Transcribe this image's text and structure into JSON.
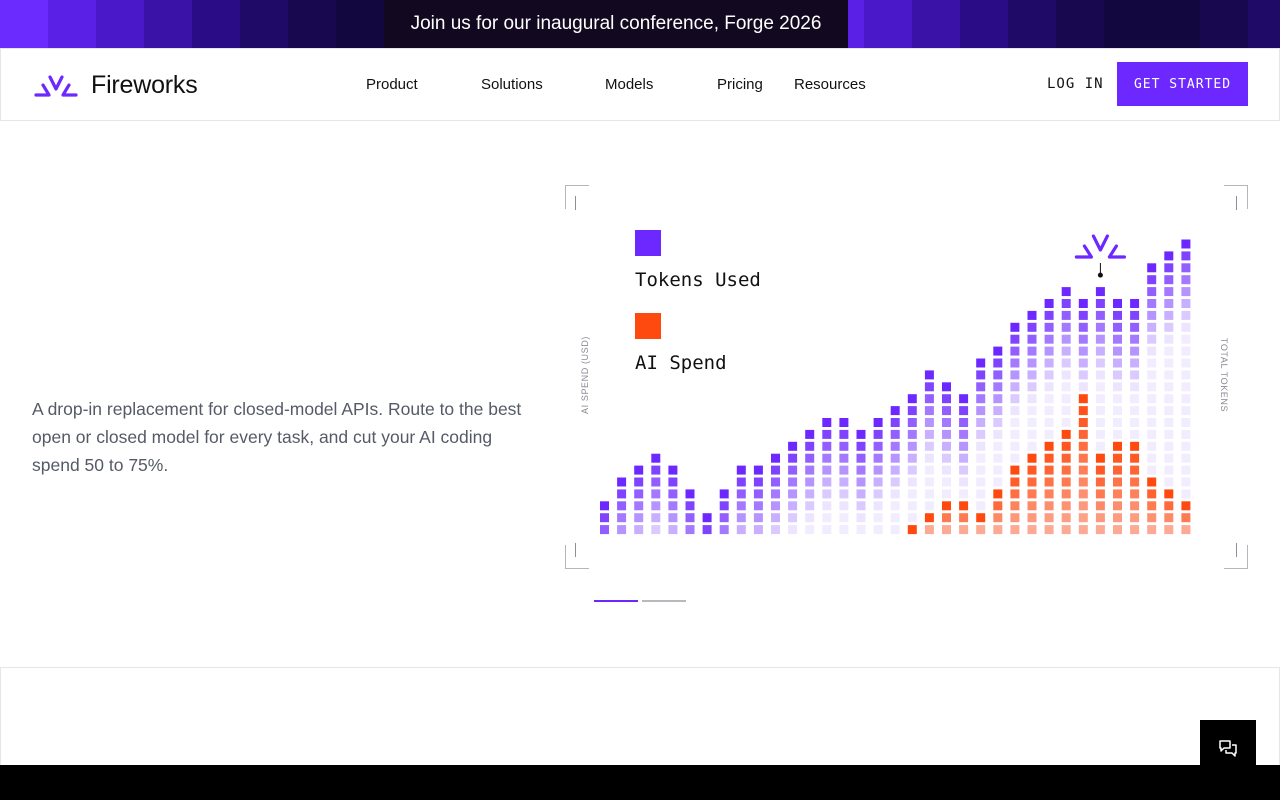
{
  "banner": {
    "text": "Join us for our inaugural conference, Forge 2026",
    "tile_colors": [
      "#6b2bff",
      "#5a20e6",
      "#4a18c9",
      "#3a12a8",
      "#2a0d86",
      "#1f0a68",
      "#170850",
      "#12073e"
    ]
  },
  "header": {
    "logo_text": "Fireworks",
    "nav": [
      "Product",
      "Solutions",
      "Models",
      "Pricing",
      "Resources"
    ],
    "login": "LOG IN",
    "cta": "GET STARTED"
  },
  "hero": {
    "description": "A drop-in replacement for closed-model APIs. Route to the best open or closed model for every task, and cut your AI coding spend 50 to 75%."
  },
  "colors": {
    "accent": "#6d28ff",
    "spend": "#ff4a0f"
  },
  "chart_data": {
    "type": "bar",
    "ylabel": "AI SPEND (USD)",
    "y2label": "TOTAL TOKENS",
    "legend_placement": "top-left",
    "series": [
      {
        "name": "Tokens Used",
        "color": "#6d28ff",
        "values": [
          3,
          5,
          6,
          7,
          6,
          4,
          2,
          4,
          6,
          6,
          7,
          8,
          9,
          10,
          10,
          9,
          10,
          11,
          12,
          14,
          13,
          12,
          15,
          16,
          18,
          19,
          20,
          21,
          20,
          21,
          20,
          20,
          23,
          24,
          25
        ]
      },
      {
        "name": "AI Spend",
        "color": "#ff4a0f",
        "values": [
          0,
          0,
          0,
          0,
          0,
          0,
          0,
          0,
          0,
          0,
          0,
          0,
          0,
          0,
          0,
          0,
          0,
          0,
          1,
          2,
          3,
          3,
          2,
          4,
          6,
          7,
          8,
          9,
          12,
          7,
          8,
          8,
          5,
          4,
          3
        ]
      }
    ]
  },
  "carousel": {
    "count": 2,
    "active": 0
  }
}
